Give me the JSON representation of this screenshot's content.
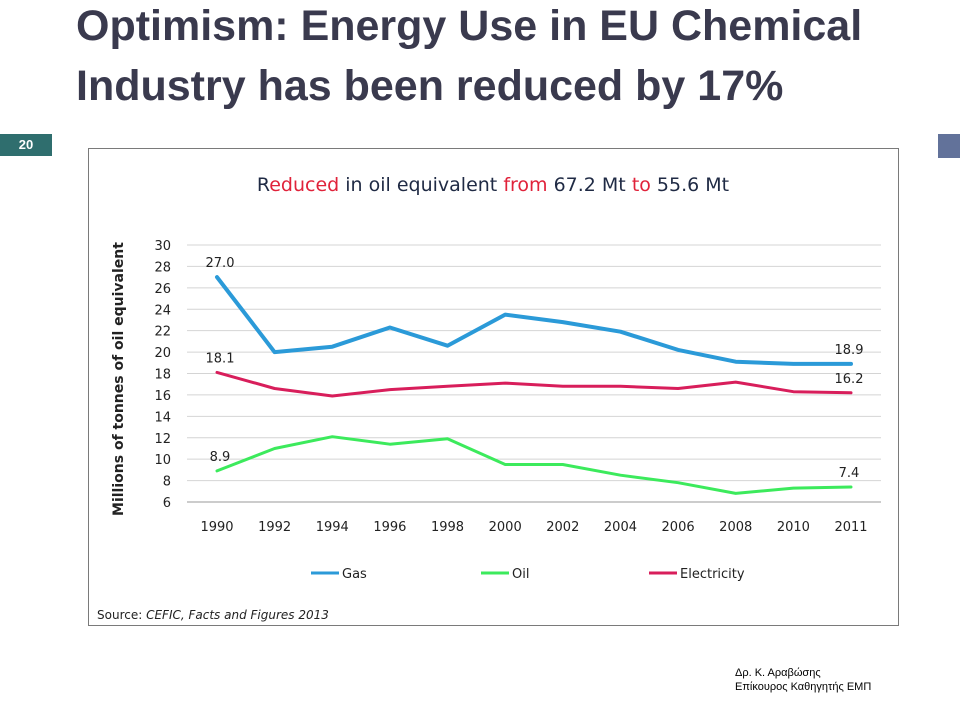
{
  "slide": {
    "title": "Optimism: Energy Use in EU Chemical Industry has been reduced by 17%",
    "slide_number": "20",
    "author_line1": "Δρ. Κ. Αραβώσης",
    "author_line2": "Επίκουρος Καθηγητής ΕΜΠ"
  },
  "chart_data": {
    "type": "line",
    "title_parts": [
      {
        "text": "R",
        "color": "#1f2a44"
      },
      {
        "text": "educed",
        "color": "#e0223a"
      },
      {
        "text": " in oil equivalent ",
        "color": "#1f2a44"
      },
      {
        "text": "from",
        "color": "#e0223a"
      },
      {
        "text": " 67.2 Mt ",
        "color": "#1f2a44"
      },
      {
        "text": "to",
        "color": "#e0223a"
      },
      {
        "text": " 55.6 Mt",
        "color": "#1f2a44"
      }
    ],
    "ylabel": "Millions of tonnes of oil equivalent",
    "source_label": "Source: ",
    "source_text": "CEFIC, Facts and Figures 2013",
    "x": [
      "1990",
      "1992",
      "1994",
      "1996",
      "1998",
      "2000",
      "2002",
      "2004",
      "2006",
      "2008",
      "2010",
      "2011"
    ],
    "yticks": [
      "6",
      "8",
      "10",
      "12",
      "14",
      "16",
      "18",
      "20",
      "22",
      "24",
      "26",
      "28",
      "30"
    ],
    "ylim": [
      6,
      30
    ],
    "grid": true,
    "legend_position": "bottom",
    "series": [
      {
        "name": "Gas",
        "color": "#2b9ad8",
        "values": [
          27.0,
          20.0,
          20.5,
          22.3,
          20.6,
          23.5,
          22.8,
          21.9,
          20.2,
          19.1,
          18.9,
          18.9
        ]
      },
      {
        "name": "Oil",
        "color": "#3cea5c",
        "values": [
          8.9,
          11.0,
          12.1,
          11.4,
          11.9,
          9.5,
          9.5,
          8.5,
          7.8,
          6.8,
          7.3,
          7.4
        ]
      },
      {
        "name": "Electricity",
        "color": "#d81e5b",
        "values": [
          18.1,
          16.6,
          15.9,
          16.5,
          16.8,
          17.1,
          16.8,
          16.8,
          16.6,
          17.2,
          16.3,
          16.2
        ]
      }
    ],
    "data_labels": [
      {
        "series": 0,
        "index": 0,
        "text": "27.0"
      },
      {
        "series": 0,
        "index": 11,
        "text": "18.9"
      },
      {
        "series": 1,
        "index": 0,
        "text": "8.9"
      },
      {
        "series": 1,
        "index": 11,
        "text": "7.4"
      },
      {
        "series": 2,
        "index": 0,
        "text": "18.1"
      },
      {
        "series": 2,
        "index": 11,
        "text": "16.2"
      }
    ]
  }
}
